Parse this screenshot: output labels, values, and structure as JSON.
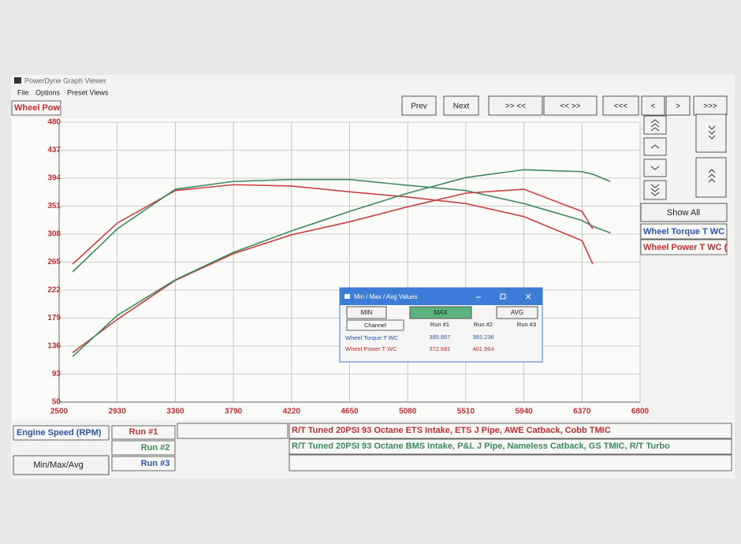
{
  "window": {
    "title": "PowerDyne Graph Viewer",
    "menu": [
      "File",
      "Options",
      "Preset Views"
    ]
  },
  "toolbar": {
    "channel": "Wheel Pow",
    "buttons": [
      "Prev",
      "Next",
      ">> <<",
      "<< >>",
      "<<<",
      "<",
      ">",
      ">>>"
    ]
  },
  "side_panel": {
    "show_all": "Show All",
    "channels": [
      "Wheel Torque T WC",
      "Wheel Power T WC ("
    ]
  },
  "chart_data": {
    "type": "line",
    "x": [
      2600,
      2930,
      3360,
      3790,
      4220,
      4650,
      5080,
      5510,
      5940,
      6370,
      6450,
      6580
    ],
    "xlim": [
      2500,
      6800
    ],
    "xticks": [
      2500,
      2930,
      3360,
      3790,
      4220,
      4650,
      5080,
      5510,
      5940,
      6370,
      6800
    ],
    "ylim": [
      50,
      480
    ],
    "yticks": [
      480,
      437,
      394,
      351,
      308,
      265,
      222,
      179,
      136,
      93,
      50
    ],
    "grid": true,
    "series": [
      {
        "color": "#c94040",
        "values": [
          262,
          325,
          375,
          384,
          382,
          373,
          365,
          355,
          335,
          298,
          262,
          null
        ]
      },
      {
        "color": "#3e8a5e",
        "values": [
          250,
          316,
          377,
          389,
          392,
          392,
          383,
          375,
          355,
          329,
          320,
          310
        ]
      },
      {
        "color": "#c94040",
        "values": [
          126,
          177,
          237,
          278,
          307,
          327,
          350,
          371,
          377,
          343,
          316,
          null
        ]
      },
      {
        "color": "#3e8a5e",
        "values": [
          120,
          183,
          238,
          280,
          313,
          343,
          371,
          395,
          407,
          404,
          400,
          389
        ]
      }
    ]
  },
  "footer": {
    "x_axis_label": "Engine Speed (RPM)",
    "runs": [
      "Run #1",
      "Run #2",
      "Run #3"
    ],
    "descriptions": [
      "R/T Tuned 20PSI 93 Octane ETS Intake, ETS J Pipe, AWE Catback, Cobb TMIC",
      "R/T Tuned 20PSI 93 Octane BMS Intake, P&L J Pipe, Nameless Catback, GS TMIC, R/T Turbo"
    ],
    "button": "Min/Max/Avg"
  },
  "dialog": {
    "title": "Min / Max / Avg Values",
    "buttons": [
      "MIN",
      "MAX",
      "AVG"
    ],
    "columns": [
      "Channel",
      "Run #1",
      "Run #2",
      "Run #3"
    ],
    "rows": [
      [
        "Wheel Torque T WC",
        "385.857",
        "393.236"
      ],
      [
        "Wheel Power T WC",
        "372.681",
        "401.964"
      ]
    ]
  }
}
